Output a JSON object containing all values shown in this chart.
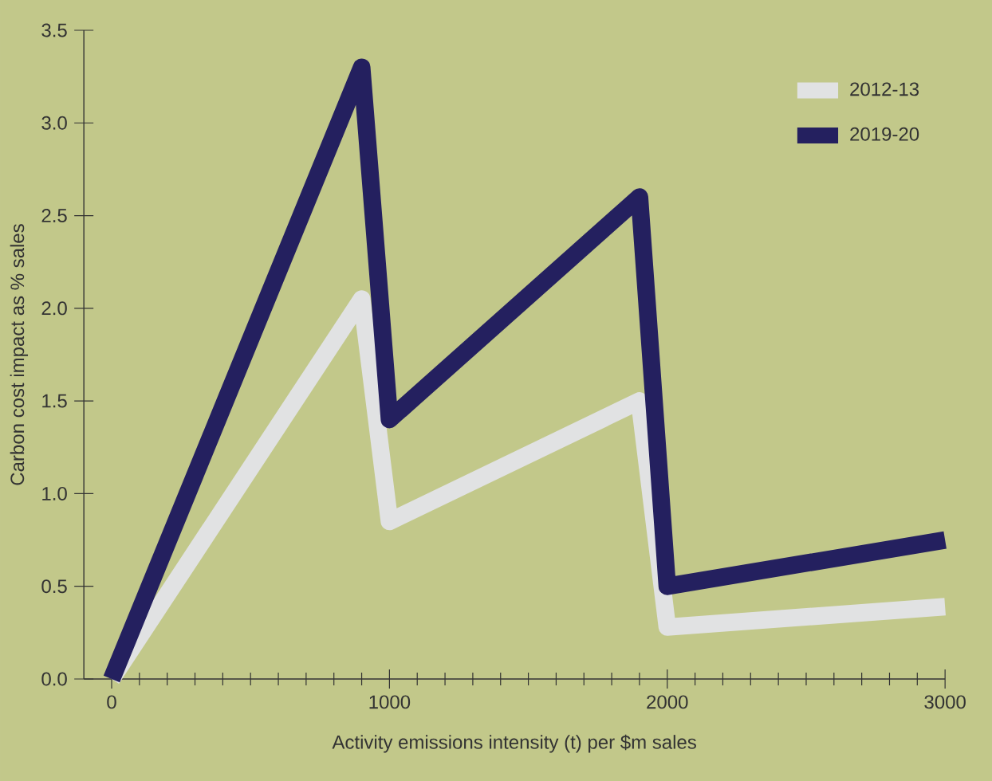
{
  "chart_data": {
    "type": "line",
    "xlabel": "Activity emissions intensity (t) per $m sales",
    "ylabel": "Carbon cost impact as % sales",
    "x": [
      0,
      900,
      1000,
      1900,
      2000,
      3000
    ],
    "series": [
      {
        "name": "2012-13",
        "color": "#e1e2e3",
        "values": [
          0,
          2.05,
          0.85,
          1.5,
          0.28,
          0.39
        ]
      },
      {
        "name": "2019-20",
        "color": "#24205f",
        "values": [
          0,
          3.3,
          1.4,
          2.6,
          0.5,
          0.75
        ]
      }
    ],
    "xlim": [
      -100,
      3000
    ],
    "ylim": [
      0,
      3.5
    ],
    "xticks": [
      0,
      1000,
      2000,
      3000
    ],
    "yticks": [
      {
        "value": 0,
        "label": "0.0"
      },
      0.5,
      {
        "value": 1,
        "label": "1.0"
      },
      1.5,
      {
        "value": 2,
        "label": "2.0"
      },
      2.5,
      {
        "value": 3,
        "label": "3.0"
      },
      3.5
    ],
    "legend": "top right",
    "grid": false,
    "marker": "none",
    "line_style": "solid"
  }
}
